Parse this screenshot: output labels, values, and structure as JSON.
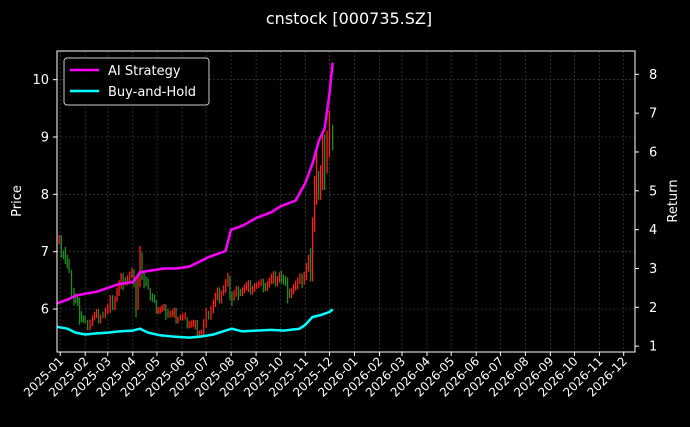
{
  "chart_data": {
    "type": "line",
    "title": "cnstock [000735.SZ]",
    "ylabel_left": "Price",
    "ylabel_right": "Return",
    "xlabel": "",
    "grid": true,
    "legend_position": "top-left",
    "x_ticks": [
      "2025-01",
      "2025-02",
      "2025-03",
      "2025-04",
      "2025-05",
      "2025-06",
      "2025-07",
      "2025-08",
      "2025-09",
      "2025-10",
      "2025-11",
      "2025-12",
      "2026-01",
      "2026-02",
      "2026-03",
      "2026-04",
      "2026-05",
      "2026-06",
      "2026-07",
      "2026-08",
      "2026-09",
      "2026-10",
      "2026-11",
      "2026-12"
    ],
    "x_range": [
      "2024-12-28",
      "2026-12-15"
    ],
    "y_left_ticks": [
      6,
      7,
      8,
      9,
      10
    ],
    "y_left_range": [
      5.25,
      10.5
    ],
    "y_right_ticks": [
      1,
      2,
      3,
      4,
      5,
      6,
      7,
      8
    ],
    "y_right_range": [
      0.85,
      8.6
    ],
    "colors": {
      "background": "#000000",
      "grid": "#3a3a3a",
      "up": "#ff1e1e",
      "down": "#228b22",
      "ai_strategy": "#ff00ff",
      "buy_and_hold": "#00ffff"
    },
    "price_series": {
      "name": "Price",
      "points": [
        [
          "2024-12-28",
          7.2
        ],
        [
          "2025-01-05",
          7.0
        ],
        [
          "2025-01-12",
          6.6
        ],
        [
          "2025-01-18",
          6.2
        ],
        [
          "2025-01-25",
          5.9
        ],
        [
          "2025-02-01",
          5.75
        ],
        [
          "2025-02-10",
          5.85
        ],
        [
          "2025-02-20",
          5.9
        ],
        [
          "2025-03-01",
          6.0
        ],
        [
          "2025-03-10",
          6.2
        ],
        [
          "2025-03-20",
          6.5
        ],
        [
          "2025-03-31",
          6.6
        ],
        [
          "2025-04-05",
          6.1
        ],
        [
          "2025-04-10",
          6.9
        ],
        [
          "2025-04-15",
          6.5
        ],
        [
          "2025-04-20",
          6.3
        ],
        [
          "2025-04-28",
          6.1
        ],
        [
          "2025-05-05",
          6.0
        ],
        [
          "2025-05-12",
          5.95
        ],
        [
          "2025-05-20",
          5.9
        ],
        [
          "2025-05-27",
          5.85
        ],
        [
          "2025-06-05",
          5.8
        ],
        [
          "2025-06-15",
          5.7
        ],
        [
          "2025-06-25",
          5.6
        ],
        [
          "2025-07-01",
          5.9
        ],
        [
          "2025-07-10",
          6.1
        ],
        [
          "2025-07-20",
          6.3
        ],
        [
          "2025-07-28",
          6.5
        ],
        [
          "2025-08-02",
          6.2
        ],
        [
          "2025-08-10",
          6.3
        ],
        [
          "2025-08-20",
          6.35
        ],
        [
          "2025-08-30",
          6.4
        ],
        [
          "2025-09-10",
          6.4
        ],
        [
          "2025-09-20",
          6.5
        ],
        [
          "2025-09-30",
          6.6
        ],
        [
          "2025-10-10",
          6.3
        ],
        [
          "2025-10-20",
          6.4
        ],
        [
          "2025-10-28",
          6.5
        ],
        [
          "2025-11-05",
          6.8
        ],
        [
          "2025-11-10",
          7.6
        ],
        [
          "2025-11-15",
          8.2
        ],
        [
          "2025-11-20",
          8.3
        ],
        [
          "2025-11-25",
          8.6
        ],
        [
          "2025-12-01",
          9.0
        ],
        [
          "2025-12-05",
          9.2
        ]
      ]
    },
    "series": [
      {
        "name": "AI Strategy",
        "axis": "right",
        "points": [
          [
            "2024-12-28",
            2.1
          ],
          [
            "2025-01-10",
            2.2
          ],
          [
            "2025-01-20",
            2.3
          ],
          [
            "2025-02-01",
            2.35
          ],
          [
            "2025-02-15",
            2.4
          ],
          [
            "2025-03-01",
            2.5
          ],
          [
            "2025-03-15",
            2.6
          ],
          [
            "2025-04-01",
            2.65
          ],
          [
            "2025-04-05",
            2.75
          ],
          [
            "2025-04-10",
            2.9
          ],
          [
            "2025-04-25",
            2.95
          ],
          [
            "2025-05-10",
            3.0
          ],
          [
            "2025-05-25",
            3.0
          ],
          [
            "2025-06-10",
            3.05
          ],
          [
            "2025-06-20",
            3.15
          ],
          [
            "2025-07-05",
            3.3
          ],
          [
            "2025-07-25",
            3.45
          ],
          [
            "2025-08-01",
            4.0
          ],
          [
            "2025-08-15",
            4.1
          ],
          [
            "2025-09-01",
            4.3
          ],
          [
            "2025-09-20",
            4.45
          ],
          [
            "2025-10-01",
            4.6
          ],
          [
            "2025-10-20",
            4.75
          ],
          [
            "2025-11-01",
            5.2
          ],
          [
            "2025-11-10",
            5.7
          ],
          [
            "2025-11-18",
            6.3
          ],
          [
            "2025-11-25",
            6.6
          ],
          [
            "2025-12-01",
            7.5
          ],
          [
            "2025-12-05",
            8.3
          ]
        ]
      },
      {
        "name": "Buy-and-Hold",
        "axis": "right",
        "points": [
          [
            "2024-12-28",
            1.5
          ],
          [
            "2025-01-10",
            1.45
          ],
          [
            "2025-01-20",
            1.35
          ],
          [
            "2025-02-01",
            1.3
          ],
          [
            "2025-02-15",
            1.33
          ],
          [
            "2025-03-01",
            1.35
          ],
          [
            "2025-03-15",
            1.38
          ],
          [
            "2025-04-01",
            1.4
          ],
          [
            "2025-04-10",
            1.45
          ],
          [
            "2025-04-20",
            1.35
          ],
          [
            "2025-05-05",
            1.28
          ],
          [
            "2025-05-20",
            1.25
          ],
          [
            "2025-06-10",
            1.22
          ],
          [
            "2025-06-25",
            1.25
          ],
          [
            "2025-07-10",
            1.3
          ],
          [
            "2025-07-25",
            1.4
          ],
          [
            "2025-08-02",
            1.45
          ],
          [
            "2025-08-15",
            1.38
          ],
          [
            "2025-09-01",
            1.4
          ],
          [
            "2025-09-20",
            1.42
          ],
          [
            "2025-10-05",
            1.4
          ],
          [
            "2025-10-25",
            1.45
          ],
          [
            "2025-11-01",
            1.55
          ],
          [
            "2025-11-10",
            1.75
          ],
          [
            "2025-11-20",
            1.8
          ],
          [
            "2025-12-01",
            1.88
          ],
          [
            "2025-12-05",
            1.95
          ]
        ]
      }
    ]
  }
}
